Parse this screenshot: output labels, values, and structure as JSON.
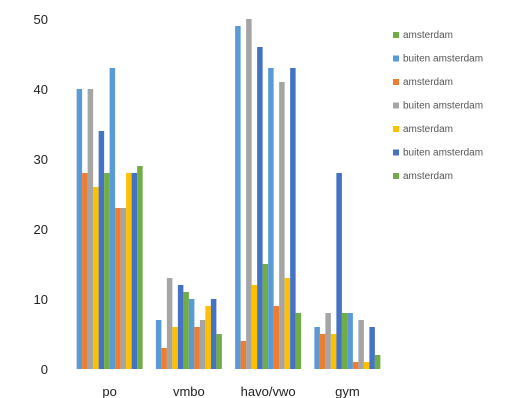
{
  "chart_data": {
    "type": "bar",
    "categories": [
      "po",
      "vmbo",
      "havo/vwo",
      "gym"
    ],
    "ylim": [
      0,
      50
    ],
    "yticks": [
      0,
      10,
      20,
      30,
      40,
      50
    ],
    "grid": false,
    "legend_position": "right",
    "series": [
      {
        "name": "buiten amsterdam",
        "color": "#5B9BD5",
        "values": [
          40,
          7,
          49,
          6
        ]
      },
      {
        "name": "amsterdam",
        "color": "#ED7D31",
        "values": [
          28,
          3,
          4,
          5
        ]
      },
      {
        "name": "buiten amsterdam",
        "color": "#A5A5A5",
        "values": [
          40,
          13,
          50,
          8
        ]
      },
      {
        "name": "amsterdam",
        "color": "#FFC000",
        "values": [
          26,
          6,
          12,
          5
        ]
      },
      {
        "name": "buiten amsterdam",
        "color": "#4472C4",
        "values": [
          34,
          12,
          46,
          28
        ]
      },
      {
        "name": "amsterdam",
        "color": "#70AD47",
        "values": [
          28,
          11,
          15,
          8
        ]
      },
      {
        "name": "buiten amsterdam",
        "color": "#5B9BD5",
        "values": [
          43,
          10,
          43,
          8
        ]
      },
      {
        "name": "amsterdam",
        "color": "#ED7D31",
        "values": [
          23,
          6,
          9,
          1
        ]
      },
      {
        "name": "buiten amsterdam",
        "color": "#A5A5A5",
        "values": [
          23,
          7,
          41,
          7
        ]
      },
      {
        "name": "amsterdam",
        "color": "#FFC000",
        "values": [
          28,
          9,
          13,
          1
        ]
      },
      {
        "name": "buiten amsterdam",
        "color": "#4472C4",
        "values": [
          28,
          10,
          43,
          6
        ]
      },
      {
        "name": "amsterdam",
        "color": "#70AD47",
        "values": [
          29,
          5,
          8,
          2
        ]
      }
    ],
    "legend": [
      {
        "label": "amsterdam",
        "color": "#70AD47"
      },
      {
        "label": "buiten amsterdam",
        "color": "#5B9BD5"
      },
      {
        "label": "amsterdam",
        "color": "#ED7D31"
      },
      {
        "label": "buiten amsterdam",
        "color": "#A5A5A5"
      },
      {
        "label": "amsterdam",
        "color": "#FFC000"
      },
      {
        "label": "buiten amsterdam",
        "color": "#4472C4"
      },
      {
        "label": "amsterdam",
        "color": "#70AD47"
      }
    ]
  }
}
